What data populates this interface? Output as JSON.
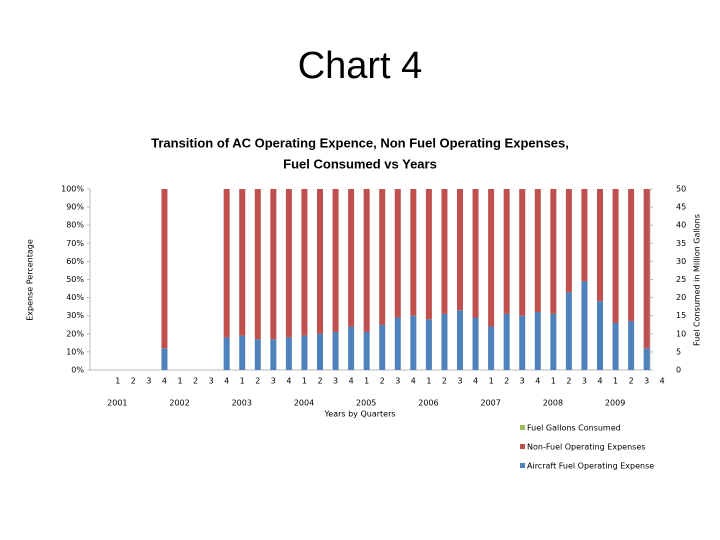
{
  "slide": {
    "title": "Chart 4"
  },
  "chart_data": {
    "type": "stacked_bar",
    "title": [
      "Transition of AC Operating Expence, Non Fuel Operating Expenses,",
      "Fuel Consumed vs Years"
    ],
    "x_label": "Years by Quarters",
    "y_label": "Expense Percentage",
    "y2_label": "Fuel Consumed in Million Gallons",
    "categories": [
      "1",
      "2",
      "3",
      "4",
      "1",
      "2",
      "3",
      "4",
      "1",
      "2",
      "3",
      "4",
      "1",
      "2",
      "3",
      "4",
      "1",
      "2",
      "3",
      "4",
      "1",
      "2",
      "3",
      "4",
      "1",
      "2",
      "3",
      "4",
      "1",
      "2",
      "3",
      "4",
      "1",
      "2",
      "3",
      "4"
    ],
    "years": [
      "2001",
      "2002",
      "2003",
      "2004",
      "2005",
      "2006",
      "2007",
      "2008",
      "2009"
    ],
    "series": [
      {
        "name": "Aircraft Fuel Operating Expense",
        "color": "#4f81bd",
        "values": [
          null,
          null,
          null,
          12,
          null,
          null,
          null,
          18,
          19,
          17,
          17,
          18,
          19,
          20,
          21,
          24,
          21,
          25,
          29,
          30,
          28,
          31,
          33,
          29,
          24,
          31,
          30,
          32,
          31,
          43,
          49,
          38,
          26,
          27,
          12,
          null
        ]
      },
      {
        "name": "Non-Fuel Operating Expenses",
        "color": "#c0504d",
        "values": [
          null,
          null,
          null,
          88,
          null,
          null,
          null,
          82,
          81,
          83,
          83,
          82,
          81,
          80,
          79,
          76,
          79,
          75,
          71,
          70,
          72,
          69,
          67,
          71,
          76,
          69,
          70,
          68,
          69,
          57,
          51,
          62,
          74,
          73,
          88,
          null
        ]
      },
      {
        "name": "Fuel Gallons Consumed",
        "color": "#9bbb59",
        "axis": "y2",
        "type": "line",
        "values": [
          null,
          null,
          null,
          null,
          null,
          null,
          null,
          null,
          null,
          null,
          null,
          null,
          null,
          null,
          null,
          null,
          null,
          null,
          null,
          null,
          null,
          null,
          null,
          null,
          null,
          null,
          null,
          null,
          null,
          null,
          null,
          null,
          null,
          null,
          null,
          null
        ]
      }
    ],
    "ylim": [
      0,
      100
    ],
    "yticks": [
      {
        "value": 0,
        "label": "0%"
      },
      {
        "value": 10,
        "label": "10%"
      },
      {
        "value": 20,
        "label": "20%"
      },
      {
        "value": 30,
        "label": "30%"
      },
      {
        "value": 40,
        "label": "40%"
      },
      {
        "value": 50,
        "label": "50%"
      },
      {
        "value": 60,
        "label": "60%"
      },
      {
        "value": 70,
        "label": "70%"
      },
      {
        "value": 80,
        "label": "80%"
      },
      {
        "value": 90,
        "label": "90%"
      },
      {
        "value": 100,
        "label": "100%"
      }
    ],
    "y2lim": [
      0,
      50
    ],
    "y2ticks": [
      0,
      5,
      10,
      15,
      20,
      25,
      30,
      35,
      40,
      45,
      50
    ],
    "grid": false
  }
}
